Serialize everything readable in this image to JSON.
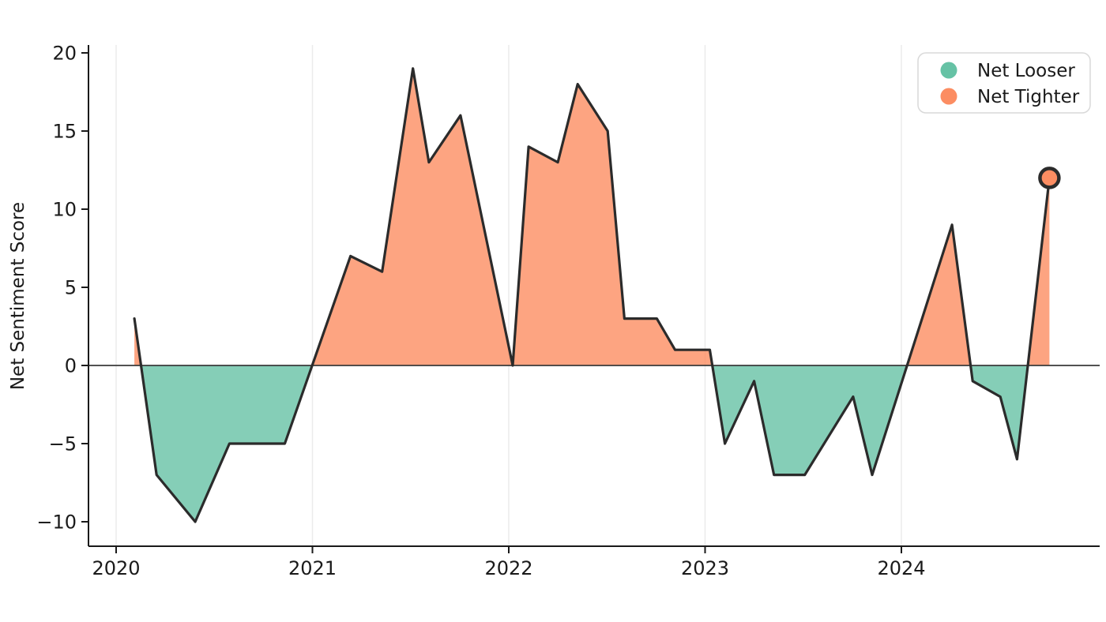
{
  "chart_data": {
    "type": "area",
    "title": "",
    "xlabel": "",
    "ylabel": "Net Sentiment Score",
    "series": [
      {
        "name": "Net Sentiment Score",
        "x": [
          2020.093,
          2020.206,
          2020.403,
          2020.577,
          2020.859,
          2021.194,
          2021.355,
          2021.512,
          2021.593,
          2021.754,
          2022.02,
          2022.101,
          2022.25,
          2022.351,
          2022.504,
          2022.589,
          2022.754,
          2022.847,
          2023.024,
          2023.101,
          2023.25,
          2023.351,
          2023.508,
          2023.754,
          2023.851,
          2024.258,
          2024.363,
          2024.504,
          2024.589,
          2024.754
        ],
        "y": [
          3,
          -7,
          -10,
          -5,
          -5,
          7,
          6,
          19,
          13,
          16,
          0,
          14,
          13,
          18,
          15,
          3,
          3,
          1,
          1,
          -5,
          -1,
          -7,
          -7,
          -2,
          -7,
          9,
          -1,
          -2,
          -6,
          12
        ]
      }
    ],
    "xlim": [
      2019.86,
      2025.01
    ],
    "ylim": [
      -11.5,
      20.5
    ],
    "x_ticks": {
      "values": [
        2020,
        2021,
        2022,
        2023,
        2024
      ],
      "labels": [
        "2020",
        "2021",
        "2022",
        "2023",
        "2024"
      ]
    },
    "y_ticks": {
      "values": [
        20,
        15,
        10,
        5,
        0,
        -5,
        -10
      ],
      "labels": [
        "20",
        "15",
        "10",
        "5",
        "0",
        "−5",
        "−10"
      ]
    },
    "grid": {
      "vertical": true,
      "horizontal": false
    },
    "zero_line": true,
    "end_marker": {
      "x": 2024.754,
      "y": 12
    },
    "colors": {
      "positive_fill": "#fc8d62",
      "negative_fill": "#66c2a5",
      "fill_opacity": 0.8,
      "line": "#2b2b2b",
      "marker_fill": "#fc8d62",
      "marker_edge": "#2b2b2b",
      "grid": "#ebebeb",
      "axis": "#1a1a1a",
      "zero_line_color": "#3a3a3a",
      "legend_border": "#d9d9d9",
      "legend_background": "#ffffff"
    },
    "legend": {
      "position": "upper right",
      "items": [
        {
          "label": "Net Looser",
          "color": "#66c2a5"
        },
        {
          "label": "Net Tighter",
          "color": "#fc8d62"
        }
      ]
    }
  }
}
